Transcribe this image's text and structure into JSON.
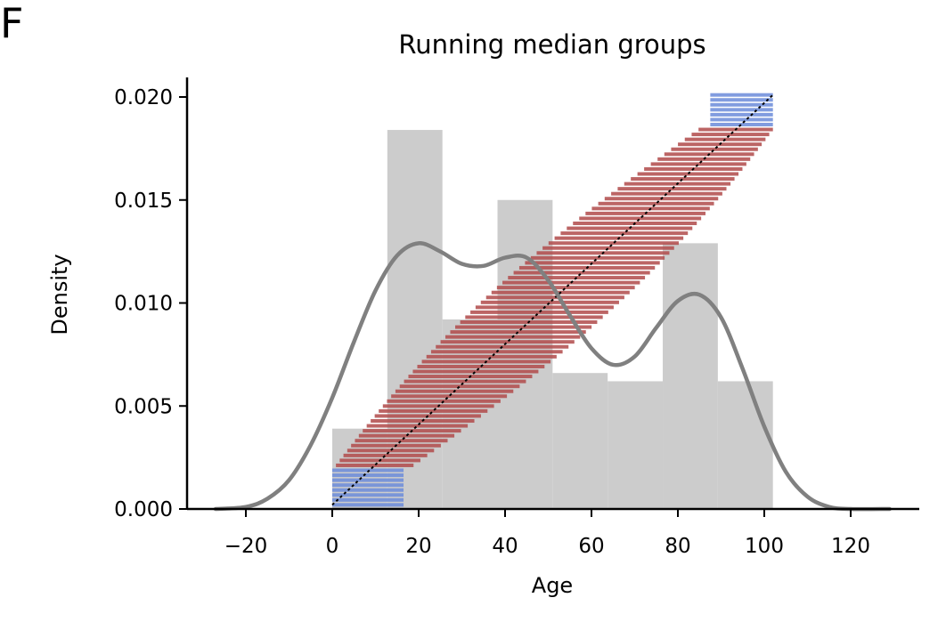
{
  "panel_label": "F",
  "chart_data": {
    "type": "bar",
    "title": "Running median groups",
    "xlabel": "Age",
    "ylabel": "Density",
    "xlim": [
      -34,
      137
    ],
    "ylim": [
      0,
      0.021
    ],
    "xticks": [
      -20,
      0,
      20,
      40,
      60,
      80,
      100,
      120
    ],
    "xtick_labels": [
      "−20",
      "0",
      "20",
      "40",
      "60",
      "80",
      "100",
      "120"
    ],
    "yticks": [
      0,
      0.005,
      0.01,
      0.015,
      0.02
    ],
    "ytick_labels": [
      "0.000",
      "0.005",
      "0.010",
      "0.015",
      "0.020"
    ],
    "grid": false,
    "spines": "left-bottom",
    "histogram": {
      "color": "#cccccc",
      "bins": [
        {
          "x0": 0,
          "x1": 12.75,
          "density": 0.0039
        },
        {
          "x0": 12.75,
          "x1": 25.5,
          "density": 0.0184
        },
        {
          "x0": 25.5,
          "x1": 38.25,
          "density": 0.0092
        },
        {
          "x0": 38.25,
          "x1": 51,
          "density": 0.015
        },
        {
          "x0": 51,
          "x1": 63.75,
          "density": 0.0066
        },
        {
          "x0": 63.75,
          "x1": 76.5,
          "density": 0.0062
        },
        {
          "x0": 76.5,
          "x1": 89.25,
          "density": 0.0129
        },
        {
          "x0": 89.25,
          "x1": 102,
          "density": 0.0062
        }
      ]
    },
    "kde": {
      "color": "#808080",
      "points": [
        [
          -27,
          0.0
        ],
        [
          -20,
          0.0001
        ],
        [
          -15,
          0.0005
        ],
        [
          -10,
          0.0014
        ],
        [
          -5,
          0.0031
        ],
        [
          0,
          0.0054
        ],
        [
          5,
          0.0081
        ],
        [
          10,
          0.0106
        ],
        [
          15,
          0.0123
        ],
        [
          20,
          0.0129
        ],
        [
          25,
          0.0125
        ],
        [
          30,
          0.0119
        ],
        [
          35,
          0.0118
        ],
        [
          40,
          0.0122
        ],
        [
          45,
          0.0122
        ],
        [
          50,
          0.0111
        ],
        [
          55,
          0.0094
        ],
        [
          60,
          0.0078
        ],
        [
          65,
          0.007
        ],
        [
          70,
          0.0074
        ],
        [
          75,
          0.0088
        ],
        [
          80,
          0.0101
        ],
        [
          85,
          0.0104
        ],
        [
          90,
          0.0093
        ],
        [
          95,
          0.0068
        ],
        [
          100,
          0.004
        ],
        [
          105,
          0.0018
        ],
        [
          110,
          0.0006
        ],
        [
          115,
          0.0001
        ],
        [
          120,
          0.0
        ],
        [
          129,
          0.0
        ]
      ]
    },
    "running_median_groups": {
      "start_color": "#6b8bd9",
      "middle_color": "#b04a4a",
      "end_color": "#6b8bd9",
      "median_line_color": "#000000",
      "groups": {
        "count": 84,
        "y_min": 0.0002,
        "y_max": 0.0201,
        "start_span": [
          0,
          16.5
        ],
        "start_group_count": 8,
        "end_span": [
          87.5,
          102
        ],
        "end_group_count": 7,
        "middle_half_width_min": 6,
        "middle_half_width_peak": 16,
        "median_x_range": [
          0,
          102
        ]
      }
    }
  }
}
